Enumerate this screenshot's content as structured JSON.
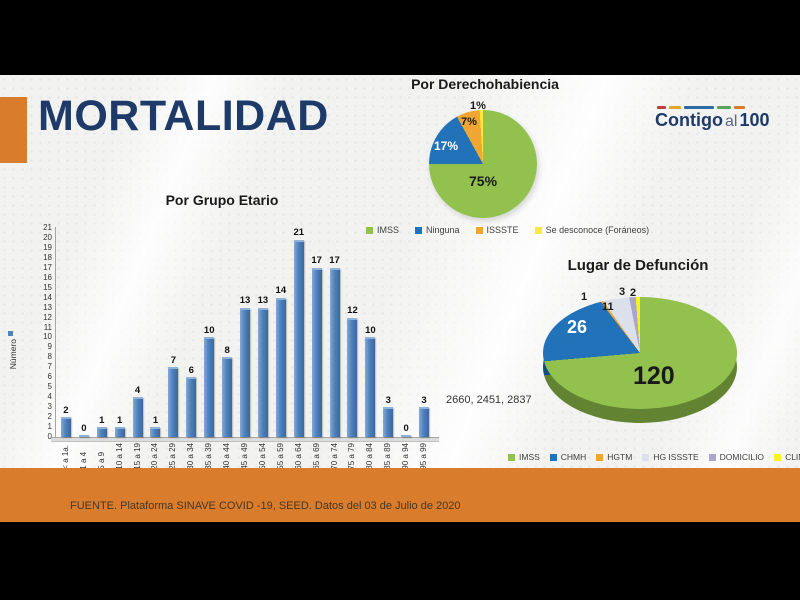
{
  "header": {
    "title": "MORTALIDAD",
    "logo": {
      "word1": "Contigo",
      "word2": "al",
      "word3": "100",
      "dash_colors": [
        "#B5413A",
        "#E0A62F",
        "#2E6DA4",
        "#5FA356",
        "#D97C2B"
      ],
      "dash_widths": [
        9,
        12,
        30,
        14,
        11
      ]
    }
  },
  "footer": {
    "source": "FUENTE. Plataforma SINAVE COVID -19, SEED. Datos del 03 de Julio de 2020"
  },
  "colors": {
    "accent_orange": "#D97C2B",
    "title_navy": "#1E3A68",
    "bar_blue": "#4F81BD"
  },
  "chart_data": [
    {
      "type": "bar",
      "title": "Por Grupo Etario",
      "ylabel": "Número",
      "ylim": [
        0,
        21
      ],
      "grid": false,
      "categories": [
        "< a 1a.",
        "1 a 4",
        "5 a 9",
        "10 a 14",
        "15 a 19",
        "20 a 24",
        "25 a 29",
        "30 a 34",
        "35 a 39",
        "40 a 44",
        "45 a 49",
        "50 a 54",
        "55 a 59",
        "60 a 64",
        "65 a 69",
        "70 a 74",
        "75 a 79",
        "80 a 84",
        "85 a 89",
        "90 a 94",
        "95 a 99"
      ],
      "values": [
        2,
        0,
        1,
        1,
        4,
        1,
        7,
        6,
        10,
        8,
        13,
        13,
        14,
        21,
        17,
        17,
        12,
        10,
        3,
        0,
        3
      ],
      "bar_color": "#4F81BD",
      "annotation": "2660, 2451, 2837"
    },
    {
      "type": "pie",
      "title": "Por Derechohabiencia",
      "labels": [
        "IMSS",
        "Ninguna",
        "ISSSTE",
        "Se desconoce (Foráneos)"
      ],
      "values": [
        75,
        17,
        7,
        1
      ],
      "slice_labels": [
        "75%",
        "17%",
        "7%",
        "1%"
      ],
      "colors": [
        "#92C14E",
        "#2272B9",
        "#F0A632",
        "#F9E840"
      ],
      "legend_position": "bottom"
    },
    {
      "type": "pie",
      "title": "Lugar de Defunción",
      "labels": [
        "IMSS",
        "CHMH",
        "HGTM",
        "HG ISSSTE",
        "DOMICILIO",
        "CLINICA PRIVADA"
      ],
      "values": [
        120,
        26,
        1,
        11,
        3,
        2
      ],
      "slice_labels": [
        "120",
        "26",
        "1",
        "11",
        "3",
        "2"
      ],
      "colors": [
        "#92C14E",
        "#2272B9",
        "#F0A632",
        "#DCE0EA",
        "#ABA6CC",
        "#FAF026"
      ],
      "style": "3d",
      "legend_position": "bottom"
    }
  ]
}
